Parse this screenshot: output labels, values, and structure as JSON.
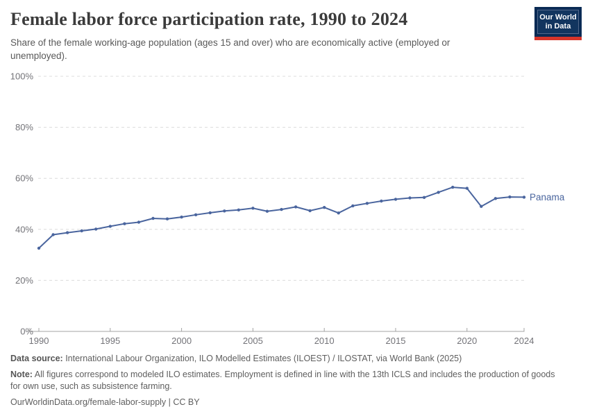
{
  "header": {
    "title": "Female labor force participation rate, 1990 to 2024",
    "subtitle": "Share of the female working-age population (ages 15 and over) who are economically active (employed or unemployed).",
    "logo": {
      "line1": "Our World",
      "line2": "in Data"
    }
  },
  "chart_data": {
    "type": "line",
    "title": "Female labor force participation rate, 1990 to 2024",
    "xlabel": "",
    "ylabel": "",
    "xlim": [
      1990,
      2024
    ],
    "ylim": [
      0,
      100
    ],
    "x_ticks": [
      1990,
      1995,
      2000,
      2005,
      2010,
      2015,
      2020,
      2024
    ],
    "y_ticks": [
      0,
      20,
      40,
      60,
      80,
      100
    ],
    "y_tick_suffix": "%",
    "grid": "horizontal-dashed",
    "legend_position": "right-end-label",
    "series": [
      {
        "name": "Panama",
        "color": "#4a659e",
        "x": [
          1990,
          1991,
          1992,
          1993,
          1994,
          1995,
          1996,
          1997,
          1998,
          1999,
          2000,
          2001,
          2002,
          2003,
          2004,
          2005,
          2006,
          2007,
          2008,
          2009,
          2010,
          2011,
          2012,
          2013,
          2014,
          2015,
          2016,
          2017,
          2018,
          2019,
          2020,
          2021,
          2022,
          2023,
          2024
        ],
        "values": [
          32.6,
          37.9,
          38.7,
          39.4,
          40.1,
          41.2,
          42.2,
          42.8,
          44.3,
          44.1,
          44.8,
          45.7,
          46.5,
          47.2,
          47.6,
          48.3,
          47.1,
          47.8,
          48.8,
          47.3,
          48.6,
          46.4,
          49.2,
          50.2,
          51.1,
          51.8,
          52.3,
          52.5,
          54.5,
          56.5,
          56.1,
          49.0,
          52.1,
          52.7,
          52.6
        ]
      }
    ]
  },
  "footer": {
    "data_source_label": "Data source:",
    "data_source_text": " International Labour Organization, ILO Modelled Estimates (ILOEST) / ILOSTAT, via World Bank (2025)",
    "note_label": "Note:",
    "note_text": " All figures correspond to modeled ILO estimates. Employment is defined in line with the 13th ICLS and includes the production of goods for own use, such as subsistence farming.",
    "url_line": "OurWorldinData.org/female-labor-supply | CC BY"
  }
}
